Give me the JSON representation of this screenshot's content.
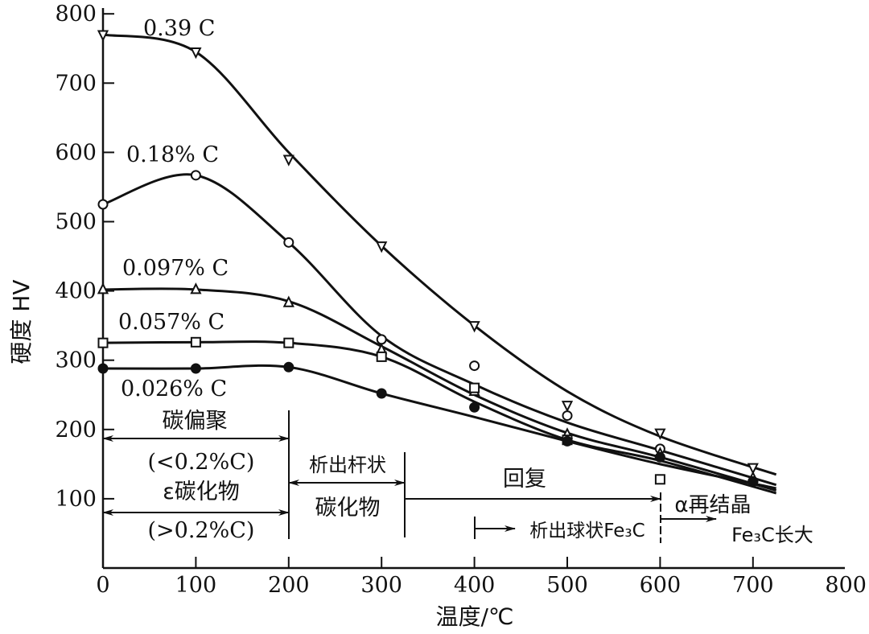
{
  "chart_data": {
    "type": "line",
    "title": "",
    "xlabel": "温度/℃",
    "ylabel": "硬度 HV",
    "xlim": [
      0,
      800
    ],
    "ylim": [
      0,
      800
    ],
    "xticks": [
      "0",
      "100",
      "200",
      "300",
      "400",
      "500",
      "600",
      "700",
      "800"
    ],
    "yticks": [
      "100",
      "200",
      "300",
      "400",
      "500",
      "600",
      "700",
      "800"
    ],
    "grid": false,
    "series": [
      {
        "name": "0.39 C",
        "marker": "triangle-down",
        "x": [
          0,
          100,
          200,
          300,
          400,
          500,
          600,
          700
        ],
        "y": [
          770,
          745,
          590,
          465,
          350,
          235,
          195,
          145
        ],
        "curve": [
          [
            0,
            770
          ],
          [
            100,
            745
          ],
          [
            200,
            600
          ],
          [
            300,
            465
          ],
          [
            400,
            350
          ],
          [
            500,
            255
          ],
          [
            600,
            190
          ],
          [
            725,
            135
          ]
        ]
      },
      {
        "name": "0.18% C",
        "marker": "circle-open",
        "x": [
          0,
          100,
          200,
          300,
          400,
          500,
          600,
          700
        ],
        "y": [
          525,
          567,
          470,
          330,
          292,
          220,
          172,
          125
        ],
        "curve": [
          [
            0,
            525
          ],
          [
            100,
            567
          ],
          [
            200,
            470
          ],
          [
            300,
            335
          ],
          [
            400,
            265
          ],
          [
            500,
            210
          ],
          [
            600,
            170
          ],
          [
            725,
            120
          ]
        ]
      },
      {
        "name": "0.097% C",
        "marker": "triangle-up",
        "x": [
          0,
          100,
          200,
          300,
          400,
          500,
          600,
          700
        ],
        "y": [
          402,
          402,
          383,
          315,
          255,
          193,
          165,
          130
        ],
        "curve": [
          [
            0,
            402
          ],
          [
            100,
            402
          ],
          [
            200,
            385
          ],
          [
            300,
            320
          ],
          [
            400,
            250
          ],
          [
            500,
            195
          ],
          [
            600,
            160
          ],
          [
            725,
            112
          ]
        ]
      },
      {
        "name": "0.057% C",
        "marker": "square",
        "x": [
          0,
          100,
          200,
          300,
          400,
          500,
          600
        ],
        "y": [
          325,
          326,
          325,
          305,
          260,
          185,
          128
        ],
        "curve": [
          [
            0,
            325
          ],
          [
            100,
            326
          ],
          [
            200,
            325
          ],
          [
            300,
            305
          ],
          [
            400,
            240
          ],
          [
            500,
            185
          ],
          [
            600,
            155
          ],
          [
            725,
            108
          ]
        ]
      },
      {
        "name": "0.026% C",
        "marker": "circle-filled",
        "x": [
          0,
          100,
          200,
          300,
          400,
          500,
          600,
          700
        ],
        "y": [
          288,
          288,
          290,
          252,
          232,
          183,
          160,
          125
        ],
        "curve": [
          [
            0,
            288
          ],
          [
            100,
            288
          ],
          [
            200,
            290
          ],
          [
            300,
            252
          ],
          [
            400,
            218
          ],
          [
            500,
            183
          ],
          [
            600,
            150
          ],
          [
            725,
            115
          ]
        ]
      }
    ],
    "annotations": {
      "carbon_segregation": "碳偏聚",
      "lt_02": "(<0.2%C)",
      "epsilon_carbide": "ε碳化物",
      "gt_02": "(>0.2%C)",
      "rod_precip": "析出杆状",
      "carbide": "碳化物",
      "recovery": "回复",
      "spheroidal": "析出球状Fe₃C",
      "recryst": "α再结晶",
      "growth": "Fe₃C长大"
    }
  }
}
